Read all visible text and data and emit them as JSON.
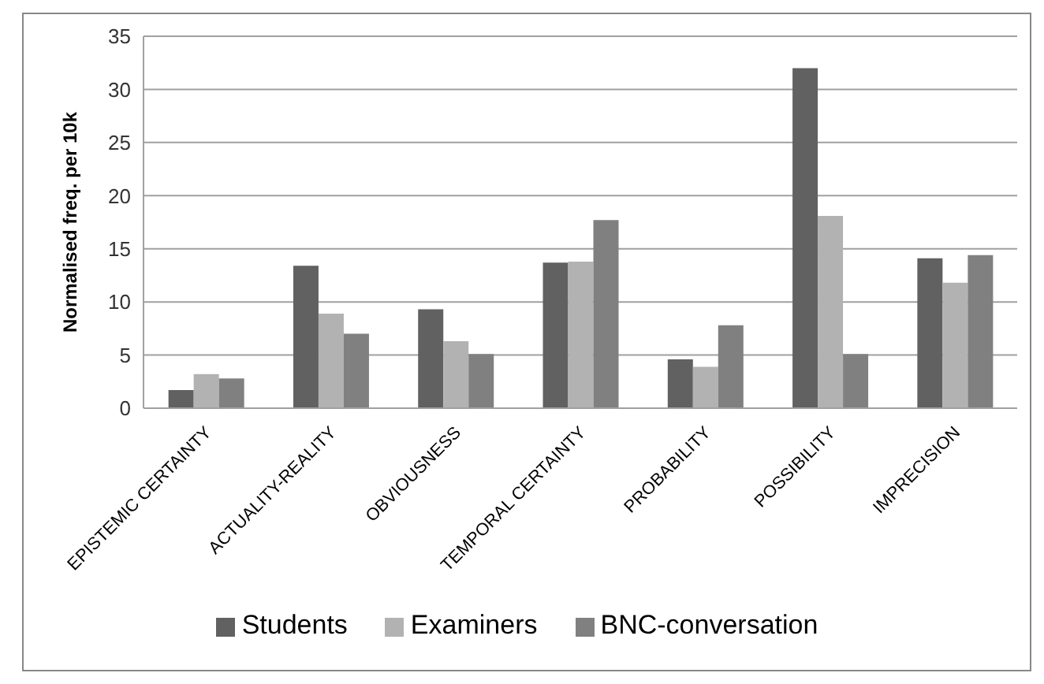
{
  "chart_data": {
    "type": "bar",
    "ylabel": "Normalised freq. per 10k",
    "categories": [
      "EPISTEMIC CERTAINTY",
      "ACTUALITY-REALITY",
      "OBVIOUSNESS",
      "TEMPORAL CERTAINTY",
      "PROBABILITY",
      "POSSIBILITY",
      "IMPRECISION"
    ],
    "series": [
      {
        "name": "Students",
        "color": "#616161",
        "values": [
          1.7,
          13.4,
          9.3,
          13.7,
          4.6,
          32,
          14.1
        ]
      },
      {
        "name": "Examiners",
        "color": "#b2b2b2",
        "values": [
          3.2,
          8.9,
          6.3,
          13.8,
          3.9,
          18.1,
          11.8
        ]
      },
      {
        "name": "BNC-conversation",
        "color": "#808080",
        "values": [
          2.8,
          7,
          5.1,
          17.7,
          7.8,
          5.1,
          14.4
        ]
      }
    ],
    "ylim": [
      0,
      35
    ],
    "yticks": [
      0,
      5,
      10,
      15,
      20,
      25,
      30,
      35
    ],
    "grid": "y",
    "legend": "bottom"
  }
}
